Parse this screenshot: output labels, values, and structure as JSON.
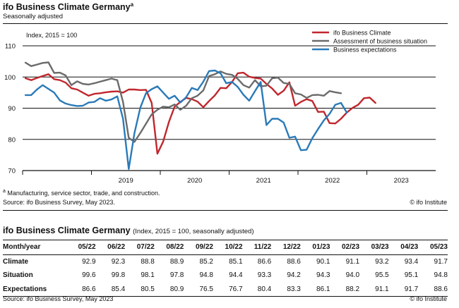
{
  "header": {
    "title": "ifo Business Climate Germany",
    "title_sup": "a",
    "subtitle": "Seasonally adjusted"
  },
  "chart_data": {
    "type": "line",
    "unit_label": "Index, 2015 = 100",
    "ylim": [
      70,
      110
    ],
    "yticks": [
      70,
      80,
      90,
      100,
      110
    ],
    "x_years": [
      "2019",
      "2020",
      "2021",
      "2022",
      "2023"
    ],
    "x_start": "2018-01",
    "x_end": "2023-12",
    "grid": true,
    "legend_position": "top-right",
    "series": [
      {
        "name": "ifo Business Climate",
        "color": "#c0272d",
        "start": "2018-01",
        "values": [
          99.6,
          99.0,
          99.7,
          100.3,
          100.9,
          99.3,
          99.0,
          98.2,
          96.4,
          96.0,
          95.0,
          94.0,
          94.6,
          94.8,
          95.1,
          95.3,
          95.4,
          95.0,
          96.0,
          96.0,
          95.8,
          95.9,
          91.7,
          75.4,
          79.3,
          85.6,
          90.5,
          92.0,
          93.3,
          92.9,
          92.1,
          90.3,
          92.3,
          94.1,
          96.5,
          96.4,
          98.4,
          101.2,
          101.4,
          100.1,
          99.7,
          99.5,
          97.8,
          96.3,
          94.3,
          95.6,
          98.3,
          90.8,
          92.0,
          92.9,
          92.3,
          88.8,
          88.9,
          85.2,
          85.1,
          86.6,
          88.6,
          90.1,
          91.1,
          93.2,
          93.4,
          91.7
        ],
        "gap_after": "2019-10"
      },
      {
        "name": "Assessment of business situation",
        "color": "#6b6b6b",
        "start": "2018-01",
        "values": [
          104.6,
          103.5,
          104.0,
          104.5,
          104.7,
          101.3,
          101.4,
          100.5,
          97.4,
          98.6,
          97.8,
          97.6,
          98.0,
          98.5,
          99.0,
          99.5,
          99.0,
          92.0,
          80.5,
          79.2,
          82.0,
          85.0,
          88.0,
          89.5,
          90.5,
          90.3,
          91.2,
          89.5,
          90.8,
          93.2,
          94.0,
          95.7,
          100.3,
          100.9,
          101.8,
          101.0,
          100.7,
          99.4,
          97.4,
          96.6,
          99.0,
          97.0,
          97.2,
          99.6,
          99.8,
          98.1,
          97.8,
          94.8,
          94.4,
          93.3,
          94.2,
          94.3,
          94.0,
          95.5,
          95.1,
          94.8
        ],
        "gap_after": "2019-10"
      },
      {
        "name": "Business expectations",
        "color": "#2a7ab8",
        "start": "2018-01",
        "values": [
          94.2,
          94.2,
          96.0,
          97.4,
          96.2,
          95.0,
          92.5,
          91.5,
          91.0,
          90.7,
          90.8,
          91.8,
          92.0,
          93.2,
          92.4,
          92.8,
          93.8,
          86.6,
          70.5,
          82.0,
          90.1,
          94.8,
          96.1,
          97.0,
          95.0,
          93.0,
          94.0,
          91.8,
          93.5,
          96.5,
          95.8,
          98.5,
          101.9,
          102.1,
          101.2,
          98.0,
          98.4,
          96.8,
          94.3,
          92.4,
          95.5,
          98.4,
          84.6,
          86.6,
          86.6,
          85.4,
          80.5,
          80.9,
          76.5,
          76.7,
          80.4,
          83.3,
          86.1,
          88.2,
          91.1,
          91.7,
          88.6
        ],
        "gap_after": "2019-10"
      }
    ]
  },
  "footnote": "Manufacturing, service sector, trade, and construction.",
  "footnote_marker": "a",
  "source": "Source: ifo Business Survey, May 2023.",
  "credit": "© ifo Institute",
  "table": {
    "title": "ifo Business Climate Germany",
    "title_paren": "(Index, 2015 = 100, seasonally adjusted)",
    "columns": [
      "Month/year",
      "05/22",
      "06/22",
      "07/22",
      "08/22",
      "09/22",
      "10/22",
      "11/22",
      "12/22",
      "01/23",
      "02/23",
      "03/23",
      "04/23",
      "05/23"
    ],
    "rows": [
      {
        "label": "Climate",
        "values": [
          "92.9",
          "92.3",
          "88.8",
          "88.9",
          "85.2",
          "85.1",
          "86.6",
          "88.6",
          "90.1",
          "91.1",
          "93.2",
          "93.4",
          "91.7"
        ]
      },
      {
        "label": "Situation",
        "values": [
          "99.6",
          "99.8",
          "98.1",
          "97.8",
          "94.8",
          "94.4",
          "93.3",
          "94.2",
          "94.3",
          "94.0",
          "95.5",
          "95.1",
          "94.8"
        ]
      },
      {
        "label": "Expectations",
        "values": [
          "86.6",
          "85.4",
          "80.5",
          "80.9",
          "76.5",
          "76.7",
          "80.4",
          "83.3",
          "86.1",
          "88.2",
          "91.1",
          "91.7",
          "88.6"
        ]
      }
    ],
    "source": "Source: ifo Business Survey, May 2023",
    "credit": "© ifo Institute"
  }
}
